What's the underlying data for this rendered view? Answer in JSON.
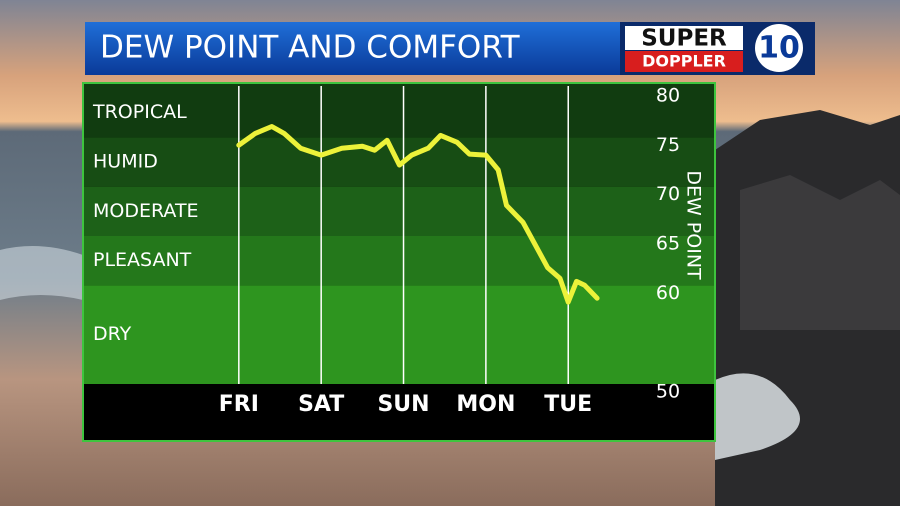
{
  "chart_data": {
    "type": "line",
    "title": "DEW POINT AND COMFORT",
    "logo": {
      "line1": "SUPER",
      "line2": "DOPPLER",
      "number": "10"
    },
    "y_label": "DEW POINT",
    "x": [
      0,
      0.2,
      0.4,
      0.55,
      0.75,
      1,
      1.25,
      1.5,
      1.65,
      1.8,
      1.95,
      2.1,
      2.3,
      2.45,
      2.65,
      2.8,
      3,
      3.15,
      3.25,
      3.45,
      3.6,
      3.75,
      3.9,
      4,
      4.1,
      4.2,
      4.35
    ],
    "series": [
      {
        "color": "#ecf23a",
        "values": [
          74.2,
          75.4,
          76.1,
          75.4,
          73.9,
          73.2,
          73.9,
          74.1,
          73.7,
          74.7,
          72.2,
          73.2,
          73.9,
          75.2,
          74.5,
          73.3,
          73.2,
          71.7,
          68.1,
          66.4,
          64.1,
          61.8,
          60.7,
          58.3,
          60.4,
          60.0,
          58.7
        ]
      }
    ],
    "xlim": [
      -1.88,
      4.92
    ],
    "xticks": [
      {
        "value": 0,
        "label": "FRI"
      },
      {
        "value": 1,
        "label": "SAT"
      },
      {
        "value": 2,
        "label": "SUN"
      },
      {
        "value": 3,
        "label": "MON"
      },
      {
        "value": 4,
        "label": "TUE"
      }
    ],
    "ylim": [
      50,
      80
    ],
    "yticks": [
      50,
      60,
      65,
      70,
      75,
      80
    ],
    "zones": [
      {
        "label": "TROPICAL",
        "from": 75,
        "to": 80,
        "color": "#113c10"
      },
      {
        "label": "HUMID",
        "from": 70,
        "to": 75,
        "color": "#174d14"
      },
      {
        "label": "MODERATE",
        "from": 65,
        "to": 70,
        "color": "#1d6118"
      },
      {
        "label": "PLEASANT",
        "from": 60,
        "to": 65,
        "color": "#24781b"
      },
      {
        "label": "DRY",
        "from": 50,
        "to": 60,
        "color": "#2e951f"
      }
    ],
    "grid": true
  }
}
